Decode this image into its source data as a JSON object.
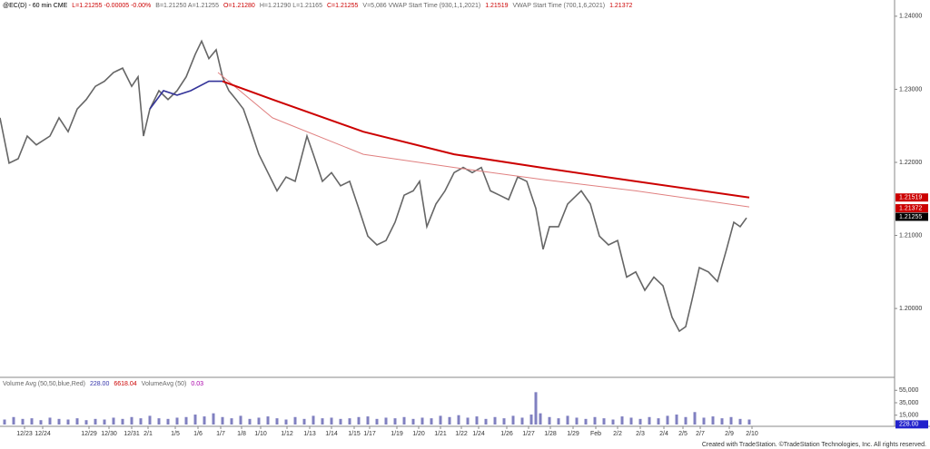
{
  "chart_data": [
    {
      "type": "line",
      "header": [
        {
          "text": "@EC(D) - 60 min  CME",
          "color": "#000000"
        },
        {
          "text": "L=1.21255  -0.00005  -0.00%",
          "color": "#cc0000"
        },
        {
          "text": "B=1.21250  A=1.21255",
          "color": "#666666"
        },
        {
          "text": "O=1.21280",
          "color": "#cc0000"
        },
        {
          "text": "H=1.21290  L=1.21165",
          "color": "#666666"
        },
        {
          "text": "C=1.21255",
          "color": "#cc0000"
        },
        {
          "text": "V=5,086  VWAP Start Time (930,1,1,2021)",
          "color": "#666666"
        },
        {
          "text": "1.21519",
          "color": "#cc0000"
        },
        {
          "text": "VWAP Start Time (700,1,6,2021)",
          "color": "#666666"
        },
        {
          "text": "1.21372",
          "color": "#cc0000"
        }
      ],
      "xlim": [
        0,
        985
      ],
      "ylim": [
        1.1907,
        1.2416
      ],
      "yticks": [
        {
          "value": 1.24,
          "label": "1.24000"
        },
        {
          "value": 1.23,
          "label": "1.23000"
        },
        {
          "value": 1.22,
          "label": "1.22000"
        },
        {
          "value": 1.21,
          "label": "1.21000"
        },
        {
          "value": 1.2,
          "label": "1.20000"
        }
      ],
      "series": [
        {
          "color": "#666666",
          "width": 1.6,
          "x": [
            0,
            10,
            20,
            30,
            40,
            55,
            65,
            75,
            85,
            95,
            105,
            115,
            125,
            135,
            145,
            152,
            158,
            165,
            175,
            185,
            195,
            205,
            215,
            222,
            230,
            238,
            245,
            252,
            260,
            268,
            275,
            285,
            295,
            305,
            315,
            325,
            338,
            345,
            355,
            365,
            375,
            385,
            395,
            405,
            415,
            425,
            435,
            445,
            455,
            462,
            470,
            480,
            490,
            500,
            510,
            520,
            530,
            540,
            550,
            560,
            570,
            580,
            590,
            598,
            605,
            615,
            625,
            635,
            640,
            650,
            660,
            670,
            680,
            690,
            700,
            710,
            720,
            730,
            740,
            748,
            755,
            762,
            770,
            780,
            790,
            800,
            808,
            815,
            822
          ],
          "values": [
            1.2261,
            1.2199,
            1.2205,
            1.2236,
            1.2224,
            1.2236,
            1.2261,
            1.2242,
            1.2273,
            1.2286,
            1.2304,
            1.2311,
            1.2323,
            1.2329,
            1.2304,
            1.2317,
            1.2236,
            1.2273,
            1.2298,
            1.2286,
            1.2298,
            1.2317,
            1.2348,
            1.2366,
            1.2342,
            1.2354,
            1.2317,
            1.2298,
            1.2286,
            1.2273,
            1.2248,
            1.2211,
            1.2186,
            1.2161,
            1.218,
            1.2174,
            1.2236,
            1.2211,
            1.2174,
            1.2186,
            1.2168,
            1.2174,
            1.2137,
            1.2099,
            1.2087,
            1.2093,
            1.2118,
            1.2155,
            1.2161,
            1.2174,
            1.2112,
            1.2143,
            1.2161,
            1.2186,
            1.2193,
            1.2186,
            1.2193,
            1.2161,
            1.2155,
            1.2149,
            1.218,
            1.2174,
            1.2137,
            1.2081,
            1.2112,
            1.2112,
            1.2143,
            1.2155,
            1.2161,
            1.2143,
            1.2099,
            1.2087,
            1.2093,
            1.2043,
            1.205,
            1.2025,
            1.2043,
            1.2031,
            1.1988,
            1.1969,
            1.1975,
            1.2012,
            1.2056,
            1.205,
            1.2037,
            1.2081,
            1.2118,
            1.2112,
            1.2124
          ]
        },
        {
          "color": "#e08080",
          "width": 1,
          "x": [
            240,
            300,
            400,
            500,
            600,
            700,
            825
          ],
          "values": [
            1.2323,
            1.2261,
            1.2211,
            1.2193,
            1.2176,
            1.2161,
            1.2139
          ]
        },
        {
          "color": "#cc0000",
          "width": 2,
          "x": [
            245,
            300,
            400,
            500,
            600,
            700,
            825
          ],
          "values": [
            1.2311,
            1.2286,
            1.2242,
            1.2211,
            1.2192,
            1.2174,
            1.2152
          ]
        },
        {
          "color": "#333399",
          "width": 1.6,
          "x": [
            165,
            180,
            195,
            210,
            230,
            245
          ],
          "values": [
            1.2273,
            1.2298,
            1.2292,
            1.2298,
            1.2311,
            1.2311
          ]
        }
      ],
      "price_tags": [
        {
          "value": 1.21519,
          "color": "#cc0000"
        },
        {
          "value": 1.21372,
          "color": "#cc0000"
        },
        {
          "value": 1.21255,
          "color": "#000000"
        }
      ]
    },
    {
      "type": "bar",
      "header": [
        {
          "text": "Volume Avg (50,50,blue,Red)",
          "color": "#666666"
        },
        {
          "text": "228.00",
          "color": "#3333aa"
        },
        {
          "text": "6618.04",
          "color": "#cc0000"
        },
        {
          "text": "VolumeAvg (50)",
          "color": "#666666"
        },
        {
          "text": "0.03",
          "color": "#aa00aa"
        }
      ],
      "xlim": [
        0,
        985
      ],
      "ylim": [
        0,
        70000
      ],
      "color": "#8080c0",
      "yticks": [
        {
          "value": 55000,
          "label": "55,000"
        },
        {
          "value": 35000,
          "label": "35,000"
        },
        {
          "value": 15000,
          "label": "15,000"
        }
      ],
      "price_tags": [
        {
          "value": 228,
          "label": "228.00",
          "color": "#2222cc"
        }
      ],
      "x": [
        5,
        15,
        25,
        35,
        45,
        55,
        65,
        75,
        85,
        95,
        105,
        115,
        125,
        135,
        145,
        155,
        165,
        175,
        185,
        195,
        205,
        215,
        225,
        235,
        245,
        255,
        265,
        275,
        285,
        295,
        305,
        315,
        325,
        335,
        345,
        355,
        365,
        375,
        385,
        395,
        405,
        415,
        425,
        435,
        445,
        455,
        465,
        475,
        485,
        495,
        505,
        515,
        525,
        535,
        545,
        555,
        565,
        575,
        585,
        590,
        595,
        605,
        615,
        625,
        635,
        645,
        655,
        665,
        675,
        685,
        695,
        705,
        715,
        725,
        735,
        745,
        755,
        765,
        775,
        785,
        795,
        805,
        815,
        825
      ],
      "values": [
        8000,
        12000,
        9000,
        10000,
        7000,
        11000,
        9000,
        8000,
        10000,
        7000,
        9000,
        8000,
        11000,
        9000,
        12000,
        10000,
        14000,
        10000,
        9000,
        11000,
        12000,
        16000,
        13000,
        18000,
        12000,
        10000,
        14000,
        9000,
        11000,
        13000,
        10000,
        8000,
        12000,
        9000,
        14000,
        10000,
        11000,
        9000,
        10000,
        12000,
        13000,
        9000,
        11000,
        10000,
        12000,
        9000,
        11000,
        10000,
        14000,
        12000,
        15000,
        11000,
        13000,
        9000,
        12000,
        10000,
        14000,
        11000,
        16000,
        52000,
        18000,
        12000,
        10000,
        14000,
        11000,
        9000,
        12000,
        10000,
        8000,
        13000,
        11000,
        9000,
        12000,
        10000,
        14000,
        16000,
        12000,
        20000,
        11000,
        13000,
        10000,
        12000,
        9000,
        8000
      ],
      "xticks": [
        {
          "value": 27,
          "label": "12/23"
        },
        {
          "value": 47,
          "label": "12/24"
        },
        {
          "value": 98,
          "label": "12/29"
        },
        {
          "value": 120,
          "label": "12/30"
        },
        {
          "value": 145,
          "label": "12/31"
        },
        {
          "value": 163,
          "label": "2/1"
        },
        {
          "value": 193,
          "label": "1/5"
        },
        {
          "value": 218,
          "label": "1/6"
        },
        {
          "value": 243,
          "label": "1/7"
        },
        {
          "value": 266,
          "label": "1/8"
        },
        {
          "value": 287,
          "label": "1/10"
        },
        {
          "value": 316,
          "label": "1/12"
        },
        {
          "value": 341,
          "label": "1/13"
        },
        {
          "value": 365,
          "label": "1/14"
        },
        {
          "value": 390,
          "label": "1/15"
        },
        {
          "value": 407,
          "label": "1/17"
        },
        {
          "value": 437,
          "label": "1/19"
        },
        {
          "value": 461,
          "label": "1/20"
        },
        {
          "value": 485,
          "label": "1/21"
        },
        {
          "value": 508,
          "label": "1/22"
        },
        {
          "value": 527,
          "label": "1/24"
        },
        {
          "value": 558,
          "label": "1/26"
        },
        {
          "value": 582,
          "label": "1/27"
        },
        {
          "value": 606,
          "label": "1/28"
        },
        {
          "value": 631,
          "label": "1/29"
        },
        {
          "value": 656,
          "label": "Feb"
        },
        {
          "value": 680,
          "label": "2/2"
        },
        {
          "value": 705,
          "label": "2/3"
        },
        {
          "value": 731,
          "label": "2/4"
        },
        {
          "value": 752,
          "label": "2/5"
        },
        {
          "value": 771,
          "label": "2/7"
        },
        {
          "value": 803,
          "label": "2/9"
        },
        {
          "value": 828,
          "label": "2/10"
        }
      ],
      "footer": "Created with TradeStation. ©TradeStation Technologies, Inc. All rights reserved."
    }
  ]
}
